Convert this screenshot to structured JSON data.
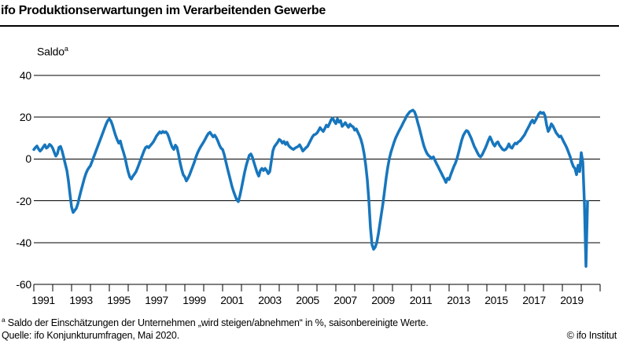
{
  "header": {
    "title": "ifo Produktionserwartungen im Verarbeitenden Gewerbe"
  },
  "chart": {
    "y_axis_title": "Saldo",
    "y_axis_title_superscript": "a"
  },
  "chart_data": {
    "type": "line",
    "title": "ifo Produktionserwartungen im Verarbeitenden Gewerbe",
    "ylabel": "Saldo",
    "unit": "Saldo in %, saisonbereinigt",
    "ylim": [
      -60,
      40
    ],
    "y_ticks": [
      40,
      20,
      0,
      -20,
      -40,
      -60
    ],
    "grid": "horizontal",
    "legend": "none",
    "x_axis": {
      "frequency": "monthly",
      "start": "1991-01",
      "end": "2020-05",
      "start_year": 1991,
      "end_tick_year": 2021,
      "tick_labels": [
        "1991",
        "1993",
        "1995",
        "1997",
        "1999",
        "2001",
        "2003",
        "2005",
        "2007",
        "2009",
        "2011",
        "2013",
        "2015",
        "2017",
        "2019"
      ]
    },
    "series": [
      {
        "name": "Produktionserwartungen",
        "color": "#1776bd",
        "values": [
          4.5,
          5.5,
          6.2,
          4.8,
          3.8,
          4.6,
          5.8,
          6.8,
          5.2,
          5.8,
          7.0,
          6.4,
          5.2,
          3.2,
          1.4,
          2.6,
          5.6,
          6.0,
          3.8,
          0.8,
          -2.4,
          -5.4,
          -10.5,
          -17.0,
          -23.0,
          -25.6,
          -24.6,
          -23.6,
          -21.4,
          -18.2,
          -15.2,
          -12.4,
          -9.6,
          -7.2,
          -5.4,
          -4.2,
          -3.2,
          -1.2,
          0.8,
          2.8,
          4.8,
          6.8,
          8.8,
          10.8,
          12.8,
          14.8,
          16.8,
          18.4,
          19.2,
          18.2,
          16.2,
          13.6,
          11.2,
          9.2,
          7.6,
          8.6,
          5.6,
          3.2,
          0.6,
          -3.0,
          -6.2,
          -8.6,
          -9.6,
          -8.2,
          -7.2,
          -6.0,
          -4.2,
          -2.2,
          -0.2,
          1.8,
          3.8,
          5.4,
          6.0,
          5.4,
          6.4,
          7.2,
          8.2,
          9.6,
          11.0,
          12.0,
          13.0,
          12.4,
          13.2,
          12.6,
          13.0,
          12.0,
          10.0,
          7.6,
          5.6,
          4.6,
          6.6,
          5.6,
          2.2,
          -1.8,
          -5.0,
          -7.6,
          -8.6,
          -10.5,
          -9.2,
          -7.6,
          -5.6,
          -3.6,
          -1.6,
          0.8,
          2.8,
          4.4,
          5.8,
          7.0,
          8.2,
          9.6,
          11.0,
          12.2,
          12.8,
          11.6,
          10.6,
          11.4,
          10.2,
          8.6,
          6.6,
          5.2,
          4.6,
          2.2,
          -1.0,
          -4.2,
          -7.2,
          -10.2,
          -13.2,
          -15.6,
          -17.6,
          -19.6,
          -20.4,
          -17.6,
          -14.0,
          -10.2,
          -6.4,
          -3.2,
          -0.6,
          1.8,
          2.4,
          0.8,
          -1.8,
          -4.2,
          -6.6,
          -8.2,
          -5.5,
          -4.5,
          -5.5,
          -4.5,
          -5.5,
          -7.0,
          -6.0,
          -1.0,
          4.0,
          6.0,
          7.0,
          8.0,
          9.4,
          8.8,
          7.6,
          8.4,
          7.0,
          8.0,
          6.4,
          5.6,
          5.0,
          4.6,
          5.2,
          5.6,
          6.0,
          6.8,
          5.4,
          3.8,
          4.6,
          5.4,
          6.0,
          7.5,
          9.0,
          10.5,
          11.5,
          11.8,
          12.4,
          13.6,
          15.0,
          14.0,
          13.2,
          14.6,
          16.2,
          15.4,
          17.0,
          18.8,
          19.6,
          18.0,
          16.9,
          19.2,
          17.6,
          18.4,
          15.6,
          16.4,
          17.4,
          16.2,
          15.2,
          16.6,
          15.8,
          15.4,
          13.8,
          14.4,
          12.8,
          11.2,
          9.2,
          6.4,
          2.4,
          -3.0,
          -10.0,
          -20.0,
          -33.0,
          -41.0,
          -43.2,
          -42.2,
          -40.0,
          -36.0,
          -31.0,
          -26.0,
          -21.0,
          -15.0,
          -9.0,
          -4.0,
          0.2,
          3.2,
          5.6,
          8.0,
          10.0,
          11.6,
          13.2,
          14.6,
          16.0,
          17.6,
          19.0,
          20.6,
          21.6,
          22.6,
          23.0,
          23.4,
          22.6,
          20.6,
          17.6,
          15.0,
          12.0,
          9.0,
          6.2,
          4.2,
          2.6,
          1.6,
          1.0,
          0.2,
          1.0,
          -0.6,
          -2.2,
          -3.6,
          -5.2,
          -6.6,
          -8.2,
          -9.6,
          -11.2,
          -9.2,
          -9.8,
          -7.6,
          -5.6,
          -3.6,
          -2.0,
          0.2,
          3.0,
          6.0,
          9.0,
          11.2,
          12.6,
          13.6,
          13.2,
          11.6,
          10.0,
          8.0,
          6.0,
          4.6,
          3.0,
          1.6,
          1.0,
          2.0,
          3.6,
          5.2,
          7.0,
          9.0,
          10.6,
          9.0,
          7.2,
          6.2,
          7.6,
          8.2,
          6.6,
          5.6,
          4.6,
          4.2,
          4.6,
          5.6,
          7.2,
          5.6,
          5.2,
          6.6,
          7.6,
          7.2,
          8.2,
          8.6,
          9.6,
          10.6,
          11.6,
          13.2,
          14.6,
          16.0,
          17.6,
          18.6,
          17.2,
          18.6,
          20.0,
          21.6,
          22.4,
          21.8,
          22.2,
          20.6,
          16.2,
          13.2,
          14.6,
          16.8,
          15.8,
          14.2,
          12.6,
          11.6,
          10.6,
          11.0,
          9.6,
          8.0,
          6.6,
          5.0,
          3.0,
          1.0,
          -1.6,
          -3.6,
          -4.5,
          -7.5,
          -3.0,
          -6.0,
          3.0,
          -1.5,
          -21.0,
          -51.4,
          -20.3
        ]
      }
    ]
  },
  "footer": {
    "footnote_sup": "a",
    "footnote_text": " Saldo der Einschätzungen der Unternehmen „wird steigen/abnehmen“ in %, saisonbereinigte Werte.",
    "source": "Quelle: ifo Konjunkturumfragen, Mai 2020.",
    "copyright": "© ifo Institut"
  }
}
